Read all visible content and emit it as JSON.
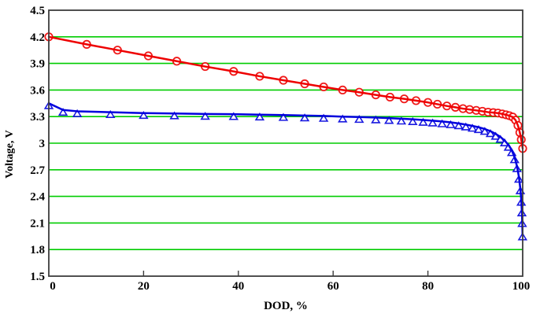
{
  "figure": {
    "x_title": "DOD, %",
    "y_title": "Voltage, V"
  },
  "chart_data": {
    "type": "line",
    "title": "",
    "xlabel": "DOD, %",
    "ylabel": "Voltage, V",
    "xlim": [
      0,
      100
    ],
    "ylim": [
      1.5,
      4.5
    ],
    "x_ticks": [
      0,
      20,
      40,
      60,
      80,
      100
    ],
    "x_tick_labels": [
      "0",
      "20",
      "40",
      "60",
      "80",
      "100"
    ],
    "y_ticks": [
      1.5,
      1.8,
      2.1,
      2.4,
      2.7,
      3,
      3.3,
      3.6,
      3.9,
      4.2,
      4.5
    ],
    "y_tick_labels": [
      "1.5",
      "1.8",
      "2.1",
      "2.4",
      "2.7",
      "3",
      "3.3",
      "3.6",
      "3.9",
      "4.2",
      "4.5"
    ],
    "grid": {
      "horizontal": true,
      "vertical": false,
      "color": "#00cc00"
    },
    "axis_color": "#3c3c3c",
    "background": "#ffffff",
    "legend": null,
    "series": [
      {
        "name": "red-discharge-curve",
        "color": "#ee0000",
        "marker": "circle",
        "x": [
          0,
          8,
          14.5,
          21,
          27,
          33,
          39,
          44.5,
          49.5,
          54,
          58,
          62,
          65.5,
          69,
          72,
          75,
          77.5,
          80,
          82,
          84,
          85.8,
          87.4,
          88.8,
          90.2,
          91.5,
          92.7,
          93.8,
          94.8,
          95.7,
          96.5,
          97.2,
          97.9,
          98.5,
          99,
          99.4,
          99.7,
          100
        ],
        "y": [
          4.2,
          4.115,
          4.05,
          3.985,
          3.925,
          3.865,
          3.81,
          3.755,
          3.71,
          3.67,
          3.635,
          3.6,
          3.575,
          3.545,
          3.52,
          3.5,
          3.48,
          3.46,
          3.44,
          3.42,
          3.405,
          3.39,
          3.38,
          3.37,
          3.36,
          3.35,
          3.345,
          3.34,
          3.33,
          3.32,
          3.31,
          3.295,
          3.26,
          3.2,
          3.12,
          3.04,
          2.94
        ]
      },
      {
        "name": "blue-discharge-curve",
        "color": "#0000dd",
        "marker": "triangle-up",
        "x": [
          0,
          3,
          6,
          13,
          20,
          26.5,
          33,
          39,
          44.5,
          49.5,
          54,
          58,
          62,
          65.5,
          69,
          71.8,
          74.4,
          76.8,
          79,
          81,
          83,
          84.8,
          86.5,
          88,
          89.4,
          90.7,
          92,
          93.2,
          94.3,
          95.3,
          96.2,
          97,
          97.7,
          98.3,
          98.8,
          99.2,
          99.5,
          99.7,
          99.82,
          99.9,
          99.97
        ],
        "y": [
          3.45,
          3.375,
          3.36,
          3.35,
          3.34,
          3.335,
          3.33,
          3.327,
          3.322,
          3.317,
          3.312,
          3.307,
          3.3,
          3.295,
          3.29,
          3.283,
          3.276,
          3.27,
          3.262,
          3.254,
          3.245,
          3.235,
          3.223,
          3.21,
          3.195,
          3.18,
          3.16,
          3.135,
          3.105,
          3.07,
          3.03,
          2.98,
          2.92,
          2.84,
          2.74,
          2.62,
          2.49,
          2.36,
          2.24,
          2.12,
          1.97
        ]
      }
    ]
  }
}
